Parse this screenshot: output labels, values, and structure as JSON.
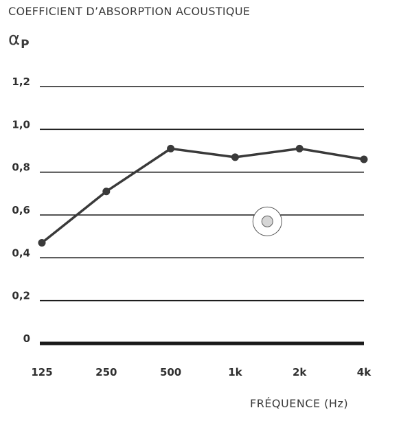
{
  "chart_data": {
    "type": "line",
    "title": "COEFFICIENT D’ABSORPTION ACOUSTIQUE",
    "ylabel_symbol": "α",
    "ylabel_subscript": "P",
    "xlabel": "FRÉQUENCE (Hz)",
    "categories": [
      "125",
      "250",
      "500",
      "1k",
      "2k",
      "4k"
    ],
    "yticks": [
      {
        "value": 0,
        "label": "0"
      },
      {
        "value": 0.2,
        "label": "0,2"
      },
      {
        "value": 0.4,
        "label": "0,4"
      },
      {
        "value": 0.6,
        "label": "0,6"
      },
      {
        "value": 0.8,
        "label": "0,8"
      },
      {
        "value": 1.0,
        "label": "1,0"
      },
      {
        "value": 1.2,
        "label": "1,2"
      }
    ],
    "ylim": [
      0,
      1.2
    ],
    "grid": true,
    "series": [
      {
        "values": [
          0.47,
          0.71,
          0.91,
          0.87,
          0.91,
          0.86
        ],
        "color": "#3a3a3a"
      }
    ],
    "marker_color": "#3a3a3a",
    "highlight_marker": {
      "x": 3.5,
      "y": 0.57,
      "fill": "#d6d6d6"
    }
  }
}
